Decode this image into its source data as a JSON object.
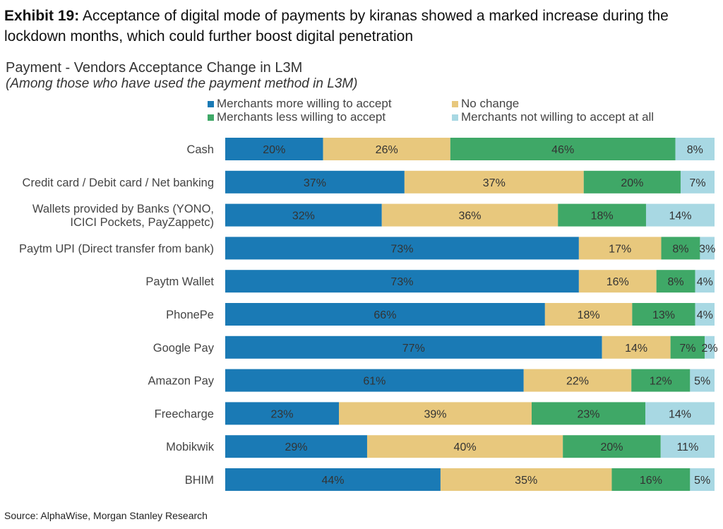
{
  "exhibit": {
    "label": "Exhibit 19:",
    "text": "Acceptance of digital mode of payments by kiranas showed a marked increase during the lockdown months, which could further boost digital penetration"
  },
  "source": "Source: AlphaWise, Morgan Stanley Research",
  "chart_data": {
    "type": "bar",
    "orientation": "horizontal",
    "stacked": true,
    "percent_stacked": true,
    "title": "Payment - Vendors Acceptance Change in L3M",
    "subtitle": "(Among those who have used the payment method in L3M)",
    "xlabel": "",
    "ylabel": "",
    "grid": false,
    "legend_position": "top",
    "categories": [
      "Cash",
      "Credit card / Debit card / Net banking",
      "Wallets provided by Banks (YONO, ICICI Pockets, PayZappetc)",
      "Paytm UPI (Direct transfer from bank)",
      "Paytm Wallet",
      "PhonePe",
      "Google Pay",
      "Amazon Pay",
      "Freecharge",
      "Mobikwik",
      "BHIM"
    ],
    "category_lines": [
      [
        "Cash"
      ],
      [
        "Credit card / Debit card / Net banking"
      ],
      [
        "Wallets provided by Banks (YONO,",
        "ICICI Pockets, PayZappetc)"
      ],
      [
        "Paytm UPI (Direct transfer from bank)"
      ],
      [
        "Paytm Wallet"
      ],
      [
        "PhonePe"
      ],
      [
        "Google Pay"
      ],
      [
        "Amazon Pay"
      ],
      [
        "Freecharge"
      ],
      [
        "Mobikwik"
      ],
      [
        "BHIM"
      ]
    ],
    "series": [
      {
        "name": "Merchants more willing to accept",
        "color": "#1a7ab5",
        "values": [
          20,
          37,
          32,
          73,
          73,
          66,
          77,
          61,
          23,
          29,
          44
        ]
      },
      {
        "name": "No change",
        "color": "#e8c87d",
        "values": [
          26,
          37,
          36,
          17,
          16,
          18,
          14,
          22,
          39,
          40,
          35
        ]
      },
      {
        "name": "Merchants less willing to accept",
        "color": "#3fa867",
        "values": [
          46,
          20,
          18,
          8,
          8,
          13,
          7,
          12,
          23,
          20,
          16
        ]
      },
      {
        "name": "Merchants not willing to accept at all",
        "color": "#a8d8e3",
        "values": [
          8,
          7,
          14,
          3,
          4,
          4,
          2,
          5,
          14,
          11,
          5
        ]
      }
    ],
    "value_suffix": "%"
  }
}
